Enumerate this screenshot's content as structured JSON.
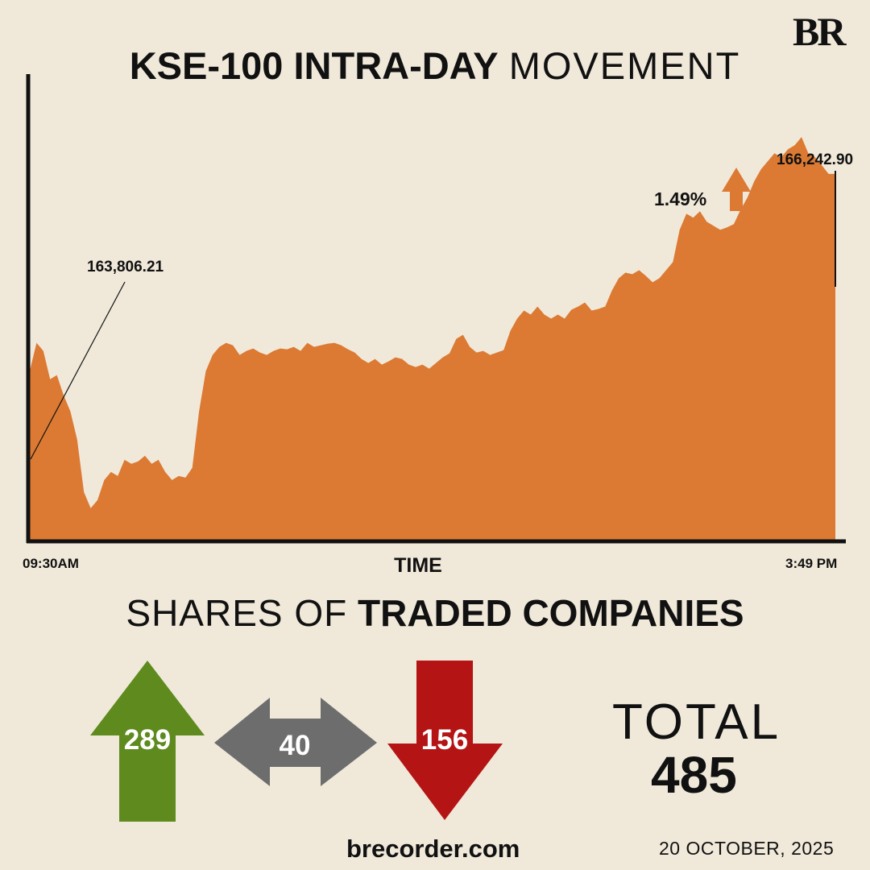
{
  "brand": {
    "logo_text": "BR"
  },
  "header": {
    "title_bold": "KSE-100 INTRA-DAY",
    "title_light": "MOVEMENT"
  },
  "chart_data": {
    "type": "area",
    "title": "KSE-100 INTRA-DAY MOVEMENT",
    "xlabel": "TIME",
    "ylabel": "",
    "x_start_label": "09:30AM",
    "x_end_label": "3:49 PM",
    "ylim": [
      161700,
      167500
    ],
    "open_value": 163806.21,
    "open_label": "163,806.21",
    "close_value": 166242.9,
    "close_label": "166,242.90",
    "change_label": "1.49%",
    "change_direction": "up",
    "color": "#dc7a33",
    "series": [
      {
        "name": "KSE-100",
        "values": [
          163806,
          164150,
          164050,
          163700,
          163750,
          163500,
          163300,
          162950,
          162300,
          162100,
          162200,
          162450,
          162550,
          162500,
          162700,
          162650,
          162680,
          162750,
          162650,
          162700,
          162550,
          162450,
          162500,
          162480,
          162600,
          163300,
          163800,
          164000,
          164100,
          164150,
          164120,
          164000,
          164050,
          164080,
          164030,
          164000,
          164050,
          164080,
          164070,
          164100,
          164050,
          164150,
          164100,
          164120,
          164140,
          164150,
          164120,
          164070,
          164030,
          163950,
          163900,
          163950,
          163880,
          163920,
          163970,
          163950,
          163880,
          163850,
          163880,
          163830,
          163900,
          163970,
          164020,
          164200,
          164250,
          164100,
          164030,
          164050,
          164000,
          164030,
          164060,
          164300,
          164450,
          164550,
          164500,
          164600,
          164500,
          164450,
          164500,
          164450,
          164560,
          164600,
          164650,
          164550,
          164570,
          164600,
          164800,
          164950,
          165020,
          165000,
          165050,
          164980,
          164900,
          164950,
          165050,
          165150,
          165550,
          165750,
          165700,
          165780,
          165650,
          165600,
          165550,
          165580,
          165620,
          165800,
          165950,
          166150,
          166300,
          166400,
          166500,
          166450,
          166550,
          166600,
          166700,
          166500,
          166450,
          166350,
          166243,
          166243
        ]
      }
    ]
  },
  "shares": {
    "heading_light": "SHARES OF",
    "heading_bold": "TRADED COMPANIES",
    "advanced": {
      "value": "289",
      "color": "#5e8a1e"
    },
    "unchanged": {
      "value": "40",
      "color": "#6d6d6d"
    },
    "declined": {
      "value": "156",
      "color": "#b41414"
    },
    "total_label": "TOTAL",
    "total_value": "485"
  },
  "footer": {
    "website": "brecorder.com",
    "date": "20 OCTOBER, 2025"
  }
}
